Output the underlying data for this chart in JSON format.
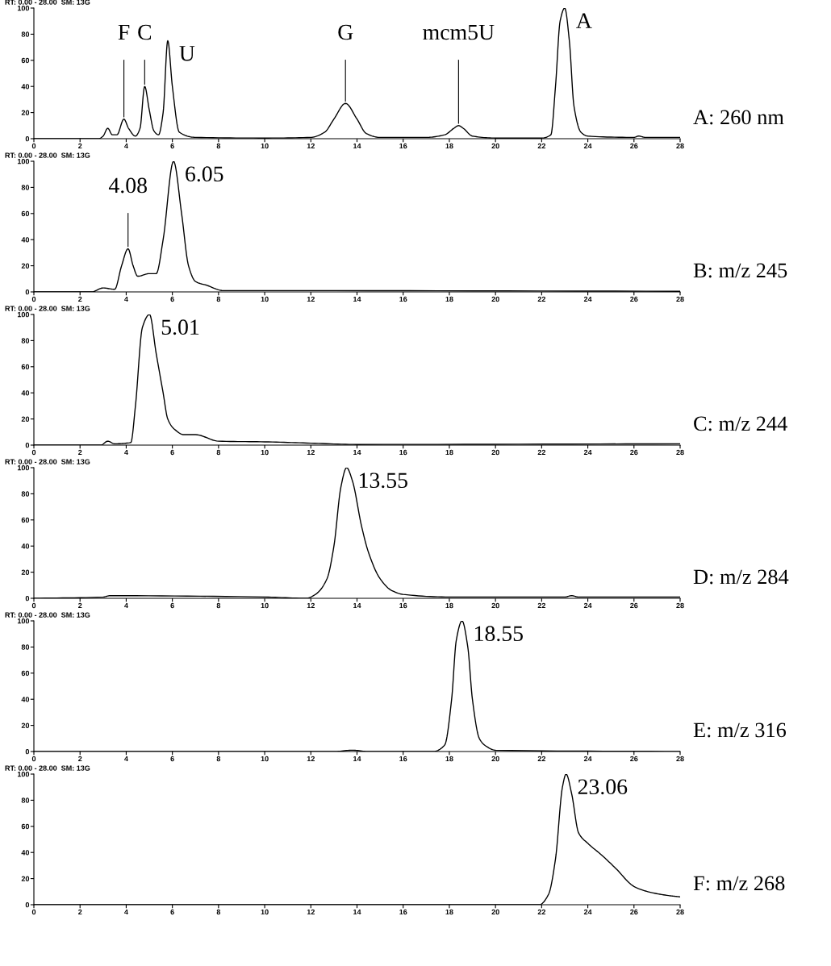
{
  "chart_data": [
    {
      "type": "line",
      "title": "A: 260 nm",
      "subtitle": "RT: 0.00 - 28.00  SM: 13G",
      "xlim": [
        0,
        28
      ],
      "ylim": [
        0,
        100
      ],
      "xticks": [
        0,
        2,
        4,
        6,
        8,
        10,
        12,
        14,
        16,
        18,
        20,
        22,
        24,
        26,
        28
      ],
      "yticks": [
        0,
        20,
        40,
        60,
        80,
        100
      ],
      "x": [
        0,
        2.8,
        3.0,
        3.2,
        3.4,
        3.6,
        3.9,
        4.1,
        4.4,
        4.6,
        4.8,
        5.0,
        5.2,
        5.4,
        5.6,
        5.8,
        6.0,
        6.3,
        7,
        10,
        12,
        12.6,
        13.0,
        13.5,
        14.0,
        14.4,
        15,
        17,
        17.8,
        18.2,
        18.4,
        18.6,
        19,
        20,
        22,
        22.4,
        22.6,
        22.8,
        23.0,
        23.2,
        23.4,
        23.7,
        24,
        26,
        26.2,
        26.5,
        28
      ],
      "series": [
        {
          "color": "#000000",
          "values": [
            0,
            0,
            2,
            8,
            3,
            3,
            15,
            8,
            2,
            8,
            40,
            22,
            6,
            3,
            20,
            75,
            40,
            5,
            1,
            0.5,
            1,
            5,
            15,
            27,
            15,
            4,
            1,
            1,
            3,
            8,
            10,
            8,
            2,
            0.5,
            0.5,
            3,
            40,
            90,
            100,
            75,
            25,
            5,
            2,
            1,
            2,
            1,
            1
          ]
        }
      ],
      "annotations": [
        {
          "text": "F",
          "x": 3.9,
          "y": 15
        },
        {
          "text": "C",
          "x": 4.8,
          "y": 40
        },
        {
          "text": "U",
          "x": 5.8,
          "y": 75
        },
        {
          "text": "G",
          "x": 13.5,
          "y": 27
        },
        {
          "text": "mcm5U",
          "x": 18.4,
          "y": 10
        },
        {
          "text": "A",
          "x": 23.0,
          "y": 100
        }
      ]
    },
    {
      "type": "line",
      "title": "B: m/z 245",
      "subtitle": "RT: 0.00 - 28.00  SM: 13G",
      "xlim": [
        0,
        28
      ],
      "ylim": [
        0,
        100
      ],
      "xticks": [
        0,
        2,
        4,
        6,
        8,
        10,
        12,
        14,
        16,
        18,
        20,
        22,
        24,
        26,
        28
      ],
      "yticks": [
        0,
        20,
        40,
        60,
        80,
        100
      ],
      "x": [
        0,
        2.5,
        3.0,
        3.5,
        3.8,
        4.08,
        4.3,
        4.5,
        5.0,
        5.3,
        5.6,
        6.05,
        6.4,
        6.7,
        7.0,
        7.5,
        8.2,
        10,
        28
      ],
      "series": [
        {
          "color": "#000000",
          "values": [
            0,
            0,
            3,
            2,
            20,
            33,
            20,
            12,
            14,
            14,
            40,
            100,
            60,
            20,
            8,
            5,
            1,
            1,
            0.5
          ]
        }
      ],
      "annotations": [
        {
          "text": "4.08",
          "x": 4.08,
          "y": 33
        },
        {
          "text": "6.05",
          "x": 6.05,
          "y": 100
        }
      ]
    },
    {
      "type": "line",
      "title": "C: m/z 244",
      "subtitle": "RT: 0.00 - 28.00  SM: 13G",
      "xlim": [
        0,
        28
      ],
      "ylim": [
        0,
        100
      ],
      "xticks": [
        0,
        2,
        4,
        6,
        8,
        10,
        12,
        14,
        16,
        18,
        20,
        22,
        24,
        26,
        28
      ],
      "yticks": [
        0,
        20,
        40,
        60,
        80,
        100
      ],
      "x": [
        0,
        2.9,
        3.2,
        3.5,
        4.2,
        4.4,
        4.7,
        5.01,
        5.3,
        5.6,
        5.8,
        6.1,
        6.5,
        7.0,
        8.0,
        10,
        12,
        14,
        28
      ],
      "series": [
        {
          "color": "#000000",
          "values": [
            0,
            0,
            3,
            1,
            2,
            30,
            90,
            100,
            70,
            40,
            20,
            12,
            8,
            8,
            3,
            2.5,
            1.5,
            0.5,
            1
          ]
        }
      ],
      "annotations": [
        {
          "text": "5.01",
          "x": 5.01,
          "y": 100
        }
      ]
    },
    {
      "type": "line",
      "title": "D: m/z 284",
      "subtitle": "RT: 0.00 - 28.00  SM: 13G",
      "xlim": [
        0,
        28
      ],
      "ylim": [
        0,
        100
      ],
      "xticks": [
        0,
        2,
        4,
        6,
        8,
        10,
        12,
        14,
        16,
        18,
        20,
        22,
        24,
        26,
        28
      ],
      "yticks": [
        0,
        20,
        40,
        60,
        80,
        100
      ],
      "x": [
        0,
        3,
        3.3,
        10,
        11.8,
        12.2,
        12.7,
        13.0,
        13.3,
        13.55,
        13.8,
        14.2,
        14.5,
        15,
        15.5,
        16,
        18,
        23,
        23.3,
        23.6,
        28
      ],
      "series": [
        {
          "color": "#000000",
          "values": [
            0,
            1,
            2,
            1,
            0,
            3,
            15,
            40,
            85,
            100,
            90,
            55,
            35,
            15,
            6,
            3,
            1,
            1,
            2,
            1,
            1
          ]
        }
      ],
      "annotations": [
        {
          "text": "13.55",
          "x": 13.55,
          "y": 100
        }
      ]
    },
    {
      "type": "line",
      "title": "E: m/z 316",
      "subtitle": "RT: 0.00 - 28.00  SM: 13G",
      "xlim": [
        0,
        28
      ],
      "ylim": [
        0,
        100
      ],
      "xticks": [
        0,
        2,
        4,
        6,
        8,
        10,
        12,
        14,
        16,
        18,
        20,
        22,
        24,
        26,
        28
      ],
      "yticks": [
        0,
        20,
        40,
        60,
        80,
        100
      ],
      "x": [
        0,
        13,
        13.8,
        14.5,
        17.3,
        17.8,
        18.1,
        18.3,
        18.55,
        18.8,
        19.0,
        19.3,
        19.6,
        20,
        28
      ],
      "series": [
        {
          "color": "#000000",
          "values": [
            0,
            0,
            1,
            0,
            0,
            5,
            40,
            85,
            100,
            80,
            40,
            10,
            4,
            1,
            0
          ]
        }
      ],
      "annotations": [
        {
          "text": "18.55",
          "x": 18.55,
          "y": 100
        }
      ]
    },
    {
      "type": "line",
      "title": "F: m/z 268",
      "subtitle": "RT: 0.00 - 28.00  SM: 13G",
      "xlim": [
        0,
        28
      ],
      "ylim": [
        0,
        100
      ],
      "xticks": [
        0,
        2,
        4,
        6,
        8,
        10,
        12,
        14,
        16,
        18,
        20,
        22,
        24,
        26,
        28
      ],
      "yticks": [
        0,
        20,
        40,
        60,
        80,
        100
      ],
      "x": [
        0,
        21.9,
        22.3,
        22.6,
        22.9,
        23.06,
        23.3,
        23.6,
        24,
        24.6,
        25.2,
        26,
        26.6,
        27.5,
        28
      ],
      "series": [
        {
          "color": "#000000",
          "values": [
            0,
            0,
            8,
            35,
            90,
            100,
            85,
            55,
            47,
            38,
            28,
            14,
            10,
            7,
            6
          ]
        }
      ],
      "annotations": [
        {
          "text": "23.06",
          "x": 23.06,
          "y": 100
        }
      ]
    }
  ]
}
